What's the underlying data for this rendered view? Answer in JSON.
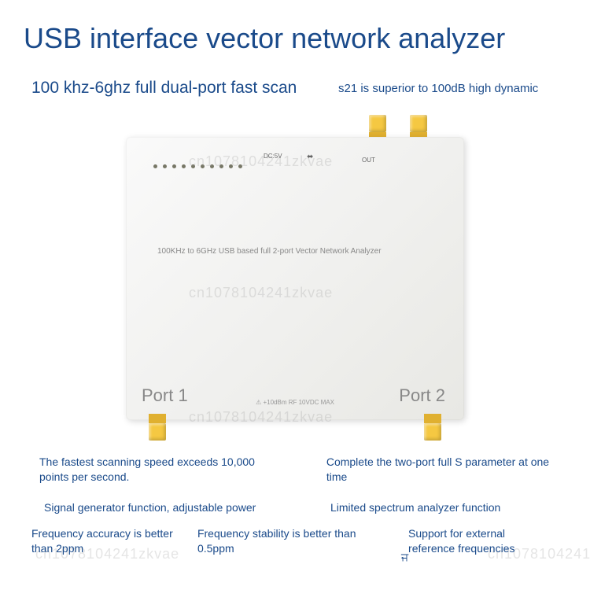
{
  "title": "USB interface vector network analyzer",
  "subtitle_left": "100 khz-6ghz full dual-port fast scan",
  "subtitle_right": "s21 is superior to 100dB high dynamic",
  "device": {
    "description": "100KHz to 6GHz USB based full 2-port Vector Network Analyzer",
    "port1_label": "Port 1",
    "port2_label": "Port 2",
    "dc_label": "DC:5V",
    "out_label": "OUT",
    "warning": "⚠ +10dBm RF 10VDC MAX"
  },
  "watermark": "cn1078104241zkvae",
  "features": {
    "f1": "The fastest scanning speed exceeds 10,000 points per second.",
    "f2": "Complete the two-port full S parameter at one time",
    "f3": "Signal generator function, adjustable power",
    "f4": "Limited spectrum analyzer function",
    "f5": "Frequency accuracy is better than 2ppm",
    "f6": "Frequency stability is better than 0.5ppm",
    "f7": "Support for external reference frequencies"
  },
  "colors": {
    "text_blue": "#1a4a8a",
    "device_bg_light": "#fafafa",
    "device_bg_dark": "#e8e8e4",
    "sma_yellow": "#f5c842",
    "grey_text": "#888888"
  }
}
